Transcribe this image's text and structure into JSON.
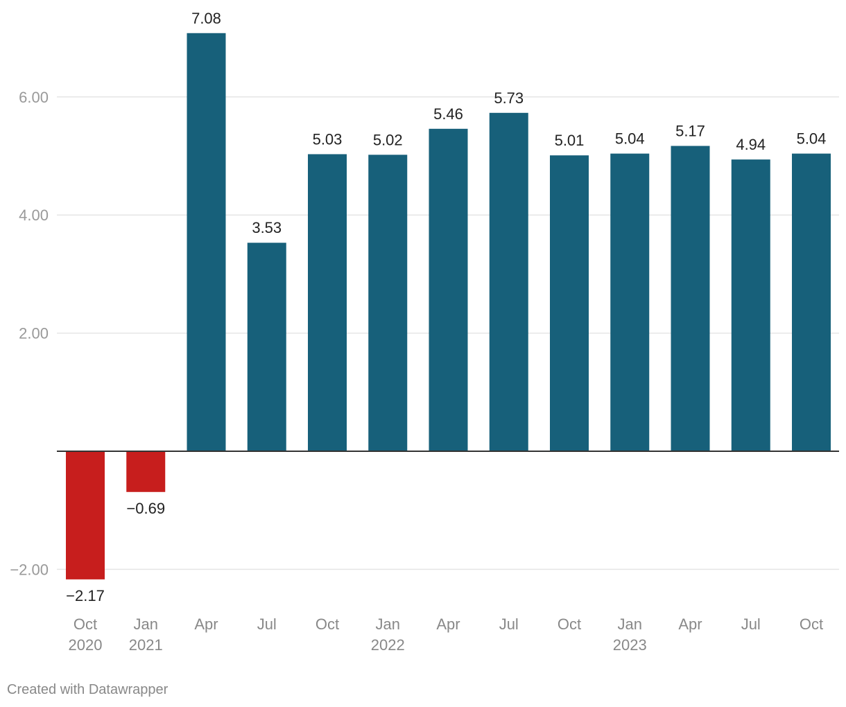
{
  "chart_data": {
    "type": "bar",
    "categories": [
      [
        "Oct",
        "2020"
      ],
      [
        "Jan",
        "2021"
      ],
      [
        "Apr",
        ""
      ],
      [
        "Jul",
        ""
      ],
      [
        "Oct",
        ""
      ],
      [
        "Jan",
        "2022"
      ],
      [
        "Apr",
        ""
      ],
      [
        "Jul",
        ""
      ],
      [
        "Oct",
        ""
      ],
      [
        "Jan",
        "2023"
      ],
      [
        "Apr",
        ""
      ],
      [
        "Jul",
        ""
      ],
      [
        "Oct",
        ""
      ]
    ],
    "values": [
      -2.17,
      -0.69,
      7.08,
      3.53,
      5.03,
      5.02,
      5.46,
      5.73,
      5.01,
      5.04,
      5.17,
      4.94,
      5.04
    ],
    "value_labels": [
      "−2.17",
      "−0.69",
      "7.08",
      "3.53",
      "5.03",
      "5.02",
      "5.46",
      "5.73",
      "5.01",
      "5.04",
      "5.17",
      "4.94",
      "5.04"
    ],
    "yticks": [
      -2,
      2,
      4,
      6
    ],
    "ytick_labels": [
      "−2.00",
      "2.00",
      "4.00",
      "6.00"
    ],
    "ylim": [
      -2.5,
      7.6
    ],
    "grid": true,
    "title": "",
    "xlabel": "",
    "ylabel": "",
    "colors": {
      "positive": "#17607a",
      "negative": "#c71e1d",
      "grid": "#e5e5e5",
      "axis": "#333333",
      "tick_text": "#999999",
      "cat_text": "#888888",
      "label_text": "#222222"
    }
  },
  "footer": {
    "credit": "Created with Datawrapper"
  }
}
